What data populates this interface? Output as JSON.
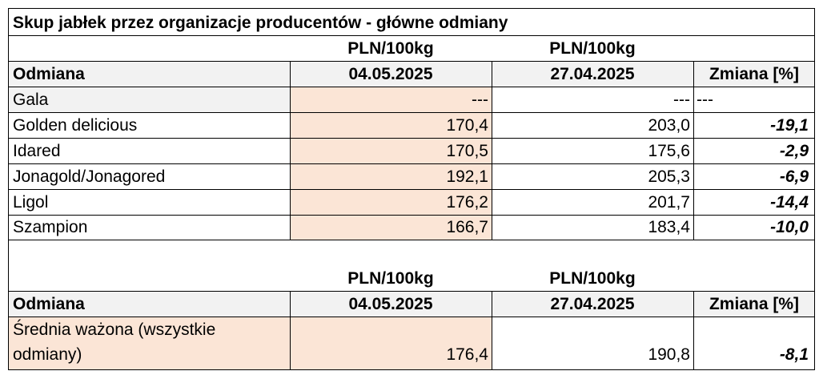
{
  "title": "Skup jabłek przez organizacje producentów  - główne odmiany",
  "unit": "PLN/100kg",
  "table1": {
    "headers": {
      "variety": "Odmiana",
      "date1": "04.05.2025",
      "date2": "27.04.2025",
      "change": "Zmiana  [%]"
    },
    "rows": [
      {
        "variety": "Gala",
        "v1": "---",
        "v2": "---",
        "change": "---"
      },
      {
        "variety": "Golden delicious",
        "v1": "170,4",
        "v2": "203,0",
        "change": "-19,1"
      },
      {
        "variety": "Idared",
        "v1": "170,5",
        "v2": "175,6",
        "change": "-2,9"
      },
      {
        "variety": "Jonagold/Jonagored",
        "v1": "192,1",
        "v2": "205,3",
        "change": "-6,9"
      },
      {
        "variety": "Ligol",
        "v1": "176,2",
        "v2": "201,7",
        "change": "-14,4"
      },
      {
        "variety": "Szampion",
        "v1": "166,7",
        "v2": "183,4",
        "change": "-10,0"
      }
    ]
  },
  "table2": {
    "headers": {
      "variety": "Odmiana",
      "date1": "04.05.2025",
      "date2": "27.04.2025",
      "change": "Zmiana  [%]"
    },
    "row": {
      "variety_line1": "Średnia ważona (wszystkie",
      "variety_line2": "odmiany)",
      "v1": "176,4",
      "v2": "190,8",
      "change": "-8,1"
    }
  },
  "colors": {
    "highlight": "#fbe5d6",
    "header_gray": "#f2f2f2",
    "border": "#000000"
  }
}
